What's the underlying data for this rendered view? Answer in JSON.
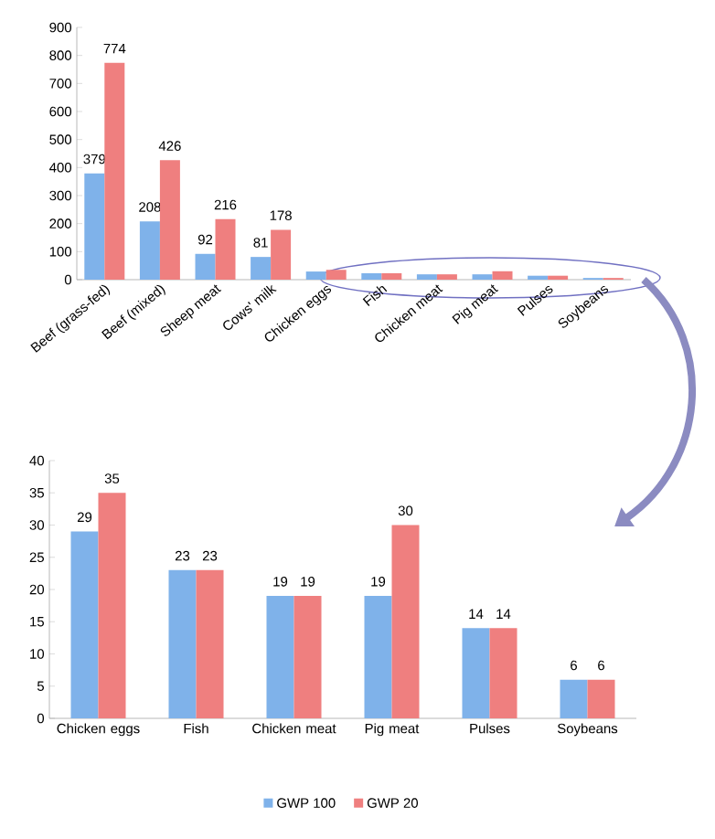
{
  "chart_data": [
    {
      "type": "bar",
      "categories": [
        "Beef (grass-fed)",
        "Beef (mixed)",
        "Sheep meat",
        "Cows' milk",
        "Chicken eggs",
        "Fish",
        "Chicken meat",
        "Pig meat",
        "Pulses",
        "Soybeans"
      ],
      "ylim": [
        0,
        900
      ],
      "yticks": [
        0,
        100,
        200,
        300,
        400,
        500,
        600,
        700,
        800,
        900
      ],
      "grid": false,
      "series": [
        {
          "color": "#7fb2ea",
          "values": [
            379,
            208,
            92,
            81,
            29,
            23,
            19,
            19,
            14,
            6
          ],
          "value_labels": [
            "379",
            "208",
            "92",
            "81",
            null,
            null,
            null,
            null,
            null,
            null
          ]
        },
        {
          "color": "#ef7f7f",
          "values": [
            774,
            426,
            216,
            178,
            35,
            23,
            19,
            30,
            14,
            6
          ],
          "value_labels": [
            "774",
            "426",
            "216",
            "178",
            null,
            null,
            null,
            null,
            null,
            null
          ]
        }
      ]
    },
    {
      "type": "bar",
      "categories": [
        "Chicken eggs",
        "Fish",
        "Chicken meat",
        "Pig meat",
        "Pulses",
        "Soybeans"
      ],
      "ylim": [
        0,
        40
      ],
      "yticks": [
        0,
        5,
        10,
        15,
        20,
        25,
        30,
        35,
        40
      ],
      "grid": false,
      "legend": "bottom",
      "data_labels": true,
      "series": [
        {
          "name": "GWP 100",
          "color": "#7fb2ea",
          "values": [
            29,
            23,
            19,
            19,
            14,
            6
          ]
        },
        {
          "name": "GWP 20",
          "color": "#ef7f7f",
          "values": [
            35,
            23,
            19,
            30,
            14,
            6
          ]
        }
      ]
    }
  ]
}
